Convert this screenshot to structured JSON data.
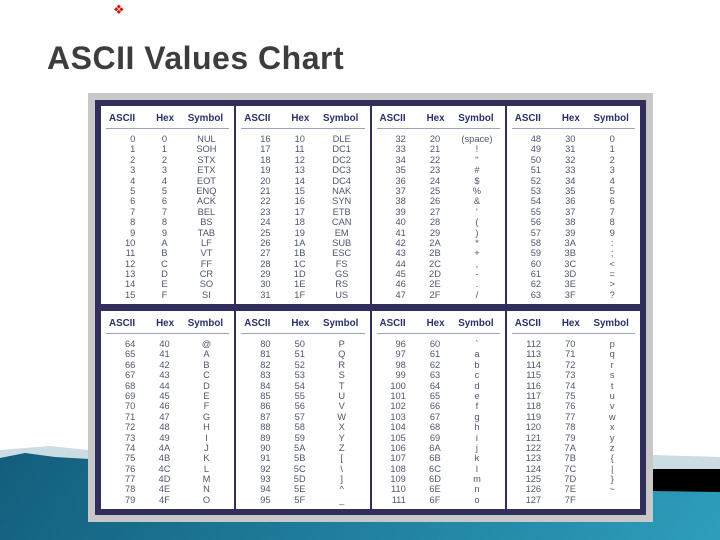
{
  "slide": {
    "title": "ASCII Values Chart",
    "corner_mark_glyph": "❖"
  },
  "colors": {
    "teal_dark": "#135d7c",
    "teal_light": "#2e9dbc",
    "lightband": "#ccdce3",
    "black_band": "#000000",
    "frame_gray": "#c8c8c8",
    "frame_navy": "#312e5c",
    "header_text": "#283266",
    "cell_text": "#4f566e",
    "title_text": "#3d3d3d"
  },
  "ascii_table": {
    "column_headers": [
      "ASCII",
      "Hex",
      "Symbol"
    ],
    "groups": [
      {
        "rows": [
          [
            0,
            "0",
            "NUL"
          ],
          [
            1,
            "1",
            "SOH"
          ],
          [
            2,
            "2",
            "STX"
          ],
          [
            3,
            "3",
            "ETX"
          ],
          [
            4,
            "4",
            "EOT"
          ],
          [
            5,
            "5",
            "ENQ"
          ],
          [
            6,
            "6",
            "ACK"
          ],
          [
            7,
            "7",
            "BEL"
          ],
          [
            8,
            "8",
            "BS"
          ],
          [
            9,
            "9",
            "TAB"
          ],
          [
            10,
            "A",
            "LF"
          ],
          [
            11,
            "B",
            "VT"
          ],
          [
            12,
            "C",
            "FF"
          ],
          [
            13,
            "D",
            "CR"
          ],
          [
            14,
            "E",
            "SO"
          ],
          [
            15,
            "F",
            "SI"
          ]
        ]
      },
      {
        "rows": [
          [
            16,
            "10",
            "DLE"
          ],
          [
            17,
            "11",
            "DC1"
          ],
          [
            18,
            "12",
            "DC2"
          ],
          [
            19,
            "13",
            "DC3"
          ],
          [
            20,
            "14",
            "DC4"
          ],
          [
            21,
            "15",
            "NAK"
          ],
          [
            22,
            "16",
            "SYN"
          ],
          [
            23,
            "17",
            "ETB"
          ],
          [
            24,
            "18",
            "CAN"
          ],
          [
            25,
            "19",
            "EM"
          ],
          [
            26,
            "1A",
            "SUB"
          ],
          [
            27,
            "1B",
            "ESC"
          ],
          [
            28,
            "1C",
            "FS"
          ],
          [
            29,
            "1D",
            "GS"
          ],
          [
            30,
            "1E",
            "RS"
          ],
          [
            31,
            "1F",
            "US"
          ]
        ]
      },
      {
        "rows": [
          [
            32,
            "20",
            "(space)"
          ],
          [
            33,
            "21",
            "!"
          ],
          [
            34,
            "22",
            "\""
          ],
          [
            35,
            "23",
            "#"
          ],
          [
            36,
            "24",
            "$"
          ],
          [
            37,
            "25",
            "%"
          ],
          [
            38,
            "26",
            "&"
          ],
          [
            39,
            "27",
            "'"
          ],
          [
            40,
            "28",
            "("
          ],
          [
            41,
            "29",
            ")"
          ],
          [
            42,
            "2A",
            "*"
          ],
          [
            43,
            "2B",
            "+"
          ],
          [
            44,
            "2C",
            ","
          ],
          [
            45,
            "2D",
            "-"
          ],
          [
            46,
            "2E",
            "."
          ],
          [
            47,
            "2F",
            "/"
          ]
        ]
      },
      {
        "rows": [
          [
            48,
            "30",
            "0"
          ],
          [
            49,
            "31",
            "1"
          ],
          [
            50,
            "32",
            "2"
          ],
          [
            51,
            "33",
            "3"
          ],
          [
            52,
            "34",
            "4"
          ],
          [
            53,
            "35",
            "5"
          ],
          [
            54,
            "36",
            "6"
          ],
          [
            55,
            "37",
            "7"
          ],
          [
            56,
            "38",
            "8"
          ],
          [
            57,
            "39",
            "9"
          ],
          [
            58,
            "3A",
            ":"
          ],
          [
            59,
            "3B",
            ";"
          ],
          [
            60,
            "3C",
            "<"
          ],
          [
            61,
            "3D",
            "="
          ],
          [
            62,
            "3E",
            ">"
          ],
          [
            63,
            "3F",
            "?"
          ]
        ]
      },
      {
        "rows": [
          [
            64,
            "40",
            "@"
          ],
          [
            65,
            "41",
            "A"
          ],
          [
            66,
            "42",
            "B"
          ],
          [
            67,
            "43",
            "C"
          ],
          [
            68,
            "44",
            "D"
          ],
          [
            69,
            "45",
            "E"
          ],
          [
            70,
            "46",
            "F"
          ],
          [
            71,
            "47",
            "G"
          ],
          [
            72,
            "48",
            "H"
          ],
          [
            73,
            "49",
            "I"
          ],
          [
            74,
            "4A",
            "J"
          ],
          [
            75,
            "4B",
            "K"
          ],
          [
            76,
            "4C",
            "L"
          ],
          [
            77,
            "4D",
            "M"
          ],
          [
            78,
            "4E",
            "N"
          ],
          [
            79,
            "4F",
            "O"
          ]
        ]
      },
      {
        "rows": [
          [
            80,
            "50",
            "P"
          ],
          [
            81,
            "51",
            "Q"
          ],
          [
            82,
            "52",
            "R"
          ],
          [
            83,
            "53",
            "S"
          ],
          [
            84,
            "54",
            "T"
          ],
          [
            85,
            "55",
            "U"
          ],
          [
            86,
            "56",
            "V"
          ],
          [
            87,
            "57",
            "W"
          ],
          [
            88,
            "58",
            "X"
          ],
          [
            89,
            "59",
            "Y"
          ],
          [
            90,
            "5A",
            "Z"
          ],
          [
            91,
            "5B",
            "["
          ],
          [
            92,
            "5C",
            "\\"
          ],
          [
            93,
            "5D",
            "]"
          ],
          [
            94,
            "5E",
            "^"
          ],
          [
            95,
            "5F",
            "_"
          ]
        ]
      },
      {
        "rows": [
          [
            96,
            "60",
            "`"
          ],
          [
            97,
            "61",
            "a"
          ],
          [
            98,
            "62",
            "b"
          ],
          [
            99,
            "63",
            "c"
          ],
          [
            100,
            "64",
            "d"
          ],
          [
            101,
            "65",
            "e"
          ],
          [
            102,
            "66",
            "f"
          ],
          [
            103,
            "67",
            "g"
          ],
          [
            104,
            "68",
            "h"
          ],
          [
            105,
            "69",
            "i"
          ],
          [
            106,
            "6A",
            "j"
          ],
          [
            107,
            "6B",
            "k"
          ],
          [
            108,
            "6C",
            "l"
          ],
          [
            109,
            "6D",
            "m"
          ],
          [
            110,
            "6E",
            "n"
          ],
          [
            111,
            "6F",
            "o"
          ]
        ]
      },
      {
        "rows": [
          [
            112,
            "70",
            "p"
          ],
          [
            113,
            "71",
            "q"
          ],
          [
            114,
            "72",
            "r"
          ],
          [
            115,
            "73",
            "s"
          ],
          [
            116,
            "74",
            "t"
          ],
          [
            117,
            "75",
            "u"
          ],
          [
            118,
            "76",
            "v"
          ],
          [
            119,
            "77",
            "w"
          ],
          [
            120,
            "78",
            "x"
          ],
          [
            121,
            "79",
            "y"
          ],
          [
            122,
            "7A",
            "z"
          ],
          [
            123,
            "7B",
            "{"
          ],
          [
            124,
            "7C",
            "|"
          ],
          [
            125,
            "7D",
            "}"
          ],
          [
            126,
            "7E",
            "~"
          ],
          [
            127,
            "7F",
            ""
          ]
        ]
      }
    ]
  }
}
